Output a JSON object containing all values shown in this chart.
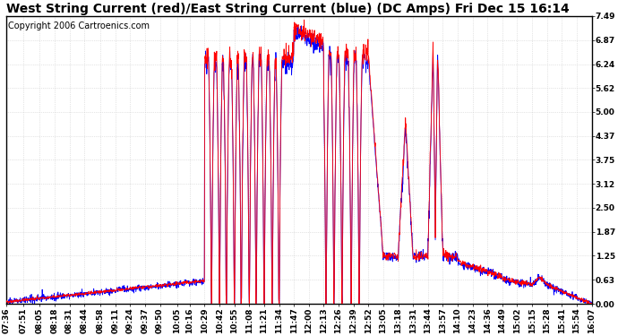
{
  "title": "West String Current (red)/East String Current (blue) (DC Amps) Fri Dec 15 16:14",
  "copyright": "Copyright 2006 Cartroenics.com",
  "plot_bg_color": "#ffffff",
  "fig_bg_color": "#ffffff",
  "border_color": "#000000",
  "grid_color": "#cccccc",
  "yticks": [
    0.0,
    0.63,
    1.25,
    1.87,
    2.5,
    3.12,
    3.75,
    4.37,
    5.0,
    5.62,
    6.24,
    6.87,
    7.49
  ],
  "ylim": [
    0.0,
    7.49
  ],
  "xtick_labels": [
    "07:36",
    "07:51",
    "08:05",
    "08:18",
    "08:31",
    "08:44",
    "08:58",
    "09:11",
    "09:24",
    "09:37",
    "09:50",
    "10:05",
    "10:16",
    "10:29",
    "10:42",
    "10:55",
    "11:08",
    "11:21",
    "11:34",
    "11:47",
    "12:00",
    "12:13",
    "12:26",
    "12:39",
    "12:52",
    "13:05",
    "13:18",
    "13:31",
    "13:44",
    "13:57",
    "14:10",
    "14:23",
    "14:36",
    "14:49",
    "15:02",
    "15:15",
    "15:28",
    "15:41",
    "15:54",
    "16:07"
  ],
  "red_color": "#ff0000",
  "blue_color": "#0000ff",
  "title_fontsize": 10,
  "tick_fontsize": 6.5,
  "copyright_fontsize": 7
}
